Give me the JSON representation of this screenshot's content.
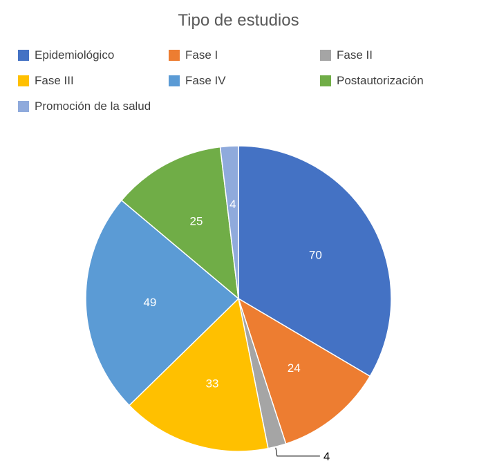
{
  "chart_data": {
    "type": "pie",
    "title": "Tipo de estudios",
    "categories": [
      "Epidemiológico",
      "Fase I",
      "Fase II",
      "Fase III",
      "Fase IV",
      "Postautorización",
      "Promoción de la salud"
    ],
    "values": [
      70,
      24,
      4,
      33,
      49,
      25,
      4
    ],
    "colors": [
      "#4472C4",
      "#ED7D31",
      "#A5A5A5",
      "#FFC000",
      "#5B9BD5",
      "#70AD47",
      "#8FAADC"
    ],
    "data_labels": [
      "70",
      "24",
      "4",
      "33",
      "49",
      "25",
      "4"
    ],
    "legend_position": "top",
    "start_angle": "12 o'clock, clockwise"
  }
}
